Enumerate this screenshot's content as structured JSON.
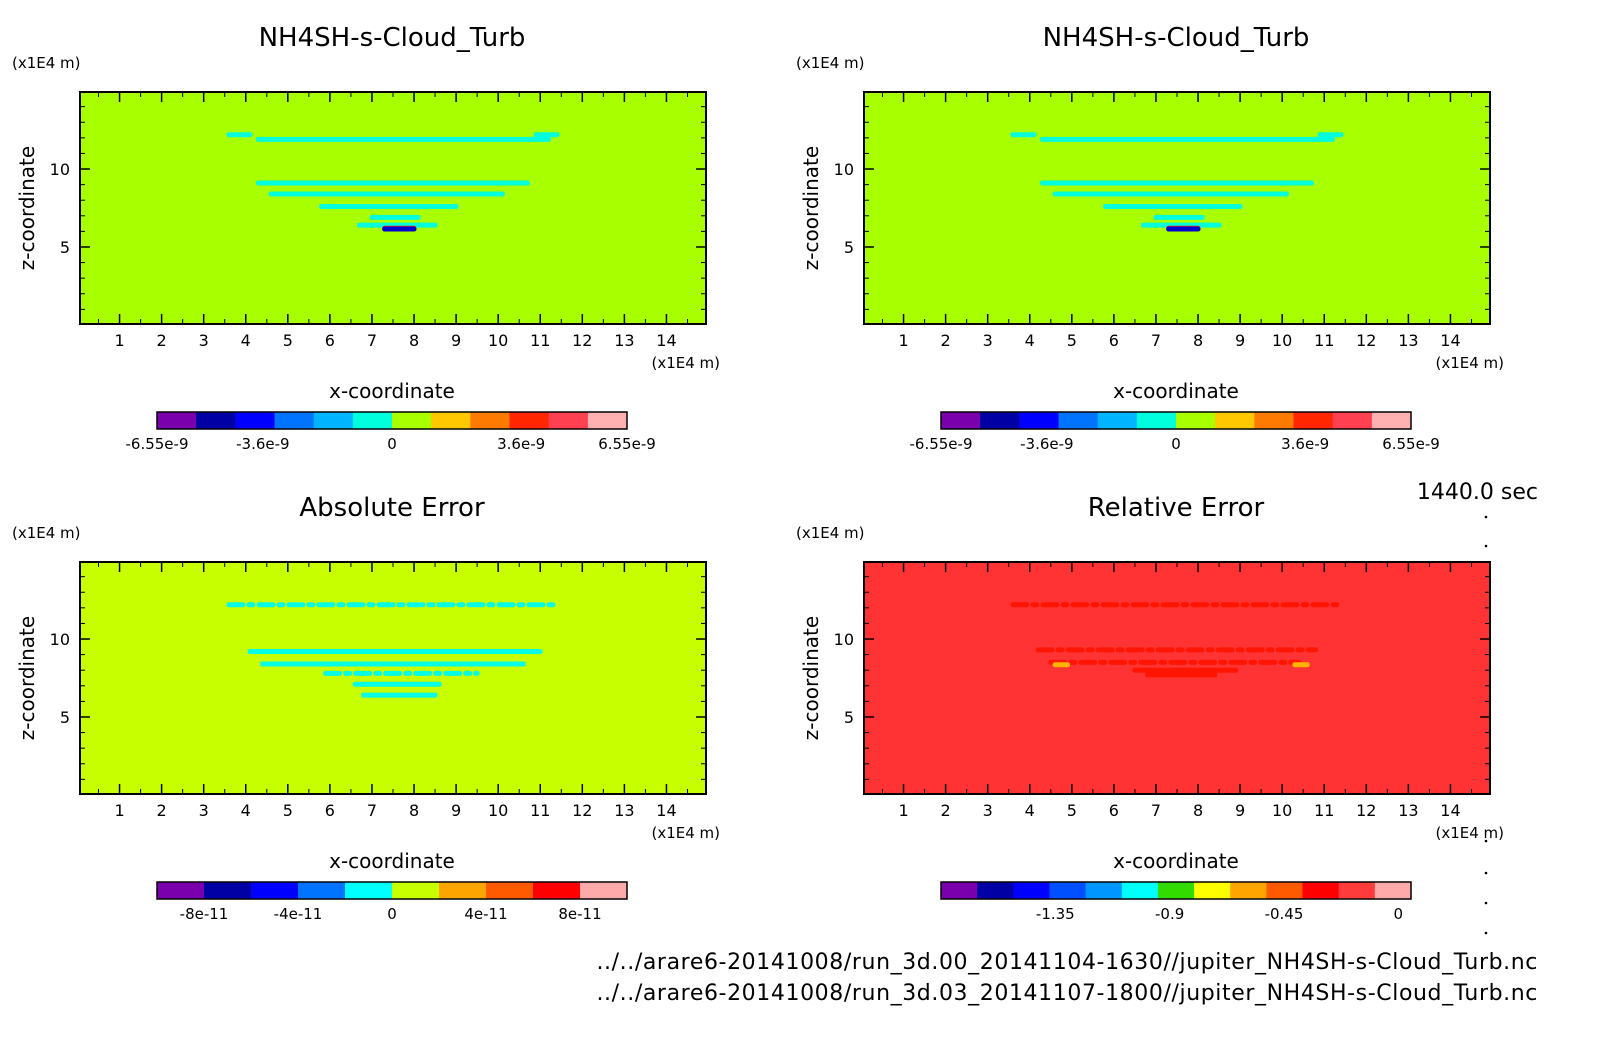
{
  "time_label": "1440.0 sec",
  "footer": {
    "line1": "../../arare6-20141008/run_3d.00_20141104-1630//jupiter_NH4SH-s-Cloud_Turb.nc",
    "line2": "../../arare6-20141008/run_3d.03_20141107-1800//jupiter_NH4SH-s-Cloud_Turb.nc"
  },
  "chart_data": [
    {
      "type": "heatmap",
      "title": "NH4SH-s-Cloud_Turb",
      "xlabel": "x-coordinate",
      "ylabel": "z-coordinate",
      "x_unit": "(x1E4 m)",
      "y_unit": "(x1E4 m)",
      "xlim": [
        0.06,
        14.94
      ],
      "ylim": [
        0.06,
        14.94
      ],
      "xticks": [
        1,
        2,
        3,
        4,
        5,
        6,
        7,
        8,
        9,
        10,
        11,
        12,
        13,
        14
      ],
      "yticks": [
        5,
        10
      ],
      "background_color": "#a8ff00",
      "features": [
        {
          "x": [
            3.6,
            4.1
          ],
          "z": [
            12.2,
            12.2
          ],
          "color": "#00ffdd"
        },
        {
          "x": [
            4.3,
            11.2
          ],
          "z": [
            11.9,
            11.9
          ],
          "color": "#00ffdd"
        },
        {
          "x": [
            10.9,
            11.4
          ],
          "z": [
            12.2,
            12.2
          ],
          "color": "#00ffdd"
        },
        {
          "x": [
            4.3,
            10.7
          ],
          "z": [
            9.1,
            9.1
          ],
          "color": "#00ffdd"
        },
        {
          "x": [
            4.6,
            10.1
          ],
          "z": [
            8.4,
            8.4
          ],
          "color": "#00ffdd"
        },
        {
          "x": [
            5.8,
            9.0
          ],
          "z": [
            7.6,
            7.6
          ],
          "color": "#00ffdd"
        },
        {
          "x": [
            7.0,
            8.1
          ],
          "z": [
            6.9,
            6.9
          ],
          "color": "#00ffdd"
        },
        {
          "x": [
            6.7,
            8.5
          ],
          "z": [
            6.4,
            6.4
          ],
          "color": "#00ffdd"
        },
        {
          "x": [
            7.3,
            8.0
          ],
          "z": [
            6.2,
            6.2
          ],
          "color": "#ff2200"
        },
        {
          "x": [
            7.3,
            8.0
          ],
          "z": [
            6.15,
            6.15
          ],
          "color": "#0000cc"
        }
      ],
      "colorbar": {
        "colors": [
          "#7a00ad",
          "#0000a5",
          "#0000ff",
          "#0073ff",
          "#00b4ff",
          "#00ffdd",
          "#a8ff00",
          "#ffc800",
          "#ff7a00",
          "#ff2600",
          "#ff4050",
          "#ffb0b0"
        ],
        "tick_values": [
          -6.55e-09,
          -3.6e-09,
          0,
          3.6e-09,
          6.55e-09
        ],
        "tick_labels": [
          "-6.55e-9",
          "-3.6e-9",
          "0",
          "3.6e-9",
          "6.55e-9"
        ],
        "range": [
          -6.55e-09,
          6.55e-09
        ]
      }
    },
    {
      "type": "heatmap",
      "title": "NH4SH-s-Cloud_Turb",
      "xlabel": "x-coordinate",
      "ylabel": "z-coordinate",
      "x_unit": "(x1E4 m)",
      "y_unit": "(x1E4 m)",
      "xlim": [
        0.06,
        14.94
      ],
      "ylim": [
        0.06,
        14.94
      ],
      "xticks": [
        1,
        2,
        3,
        4,
        5,
        6,
        7,
        8,
        9,
        10,
        11,
        12,
        13,
        14
      ],
      "yticks": [
        5,
        10
      ],
      "background_color": "#a8ff00",
      "features": [
        {
          "x": [
            3.6,
            4.1
          ],
          "z": [
            12.2,
            12.2
          ],
          "color": "#00ffdd"
        },
        {
          "x": [
            4.3,
            11.2
          ],
          "z": [
            11.9,
            11.9
          ],
          "color": "#00ffdd"
        },
        {
          "x": [
            10.9,
            11.4
          ],
          "z": [
            12.2,
            12.2
          ],
          "color": "#00ffdd"
        },
        {
          "x": [
            4.3,
            10.7
          ],
          "z": [
            9.1,
            9.1
          ],
          "color": "#00ffdd"
        },
        {
          "x": [
            4.6,
            10.1
          ],
          "z": [
            8.4,
            8.4
          ],
          "color": "#00ffdd"
        },
        {
          "x": [
            5.8,
            9.0
          ],
          "z": [
            7.6,
            7.6
          ],
          "color": "#00ffdd"
        },
        {
          "x": [
            7.0,
            8.1
          ],
          "z": [
            6.9,
            6.9
          ],
          "color": "#00ffdd"
        },
        {
          "x": [
            6.7,
            8.5
          ],
          "z": [
            6.4,
            6.4
          ],
          "color": "#00ffdd"
        },
        {
          "x": [
            7.3,
            8.0
          ],
          "z": [
            6.2,
            6.2
          ],
          "color": "#ff2200"
        },
        {
          "x": [
            7.3,
            8.0
          ],
          "z": [
            6.15,
            6.15
          ],
          "color": "#0000cc"
        }
      ],
      "colorbar": {
        "colors": [
          "#7a00ad",
          "#0000a5",
          "#0000ff",
          "#0073ff",
          "#00b4ff",
          "#00ffdd",
          "#a8ff00",
          "#ffc800",
          "#ff7a00",
          "#ff2600",
          "#ff4050",
          "#ffb0b0"
        ],
        "tick_values": [
          -6.55e-09,
          -3.6e-09,
          0,
          3.6e-09,
          6.55e-09
        ],
        "tick_labels": [
          "-6.55e-9",
          "-3.6e-9",
          "0",
          "3.6e-9",
          "6.55e-9"
        ],
        "range": [
          -6.55e-09,
          6.55e-09
        ]
      }
    },
    {
      "type": "heatmap",
      "title": "Absolute Error",
      "xlabel": "x-coordinate",
      "ylabel": "z-coordinate",
      "x_unit": "(x1E4 m)",
      "y_unit": "(x1E4 m)",
      "xlim": [
        0.06,
        14.94
      ],
      "ylim": [
        0.06,
        14.94
      ],
      "xticks": [
        1,
        2,
        3,
        4,
        5,
        6,
        7,
        8,
        9,
        10,
        11,
        12,
        13,
        14
      ],
      "yticks": [
        5,
        10
      ],
      "background_color": "#c8ff00",
      "features": [
        {
          "x": [
            3.6,
            11.4
          ],
          "z": [
            12.2,
            12.2
          ],
          "color": "#00ffe6",
          "style": "dashed"
        },
        {
          "x": [
            4.1,
            11.0
          ],
          "z": [
            9.2,
            9.2
          ],
          "color": "#00ffe6"
        },
        {
          "x": [
            4.4,
            10.6
          ],
          "z": [
            8.4,
            8.4
          ],
          "color": "#00ffe6"
        },
        {
          "x": [
            5.9,
            9.5
          ],
          "z": [
            7.8,
            7.8
          ],
          "color": "#00ffe6",
          "style": "dashed"
        },
        {
          "x": [
            6.6,
            8.6
          ],
          "z": [
            7.1,
            7.1
          ],
          "color": "#00ffe6"
        },
        {
          "x": [
            6.8,
            8.5
          ],
          "z": [
            6.4,
            6.4
          ],
          "color": "#00ffe6"
        }
      ],
      "colorbar": {
        "colors": [
          "#7a00ad",
          "#0000a5",
          "#0000ff",
          "#0073ff",
          "#00ffff",
          "#c8ff00",
          "#ffa500",
          "#ff5a00",
          "#ff0000",
          "#ffaaaa"
        ],
        "tick_values": [
          -8e-11,
          -4e-11,
          0,
          4e-11,
          8e-11
        ],
        "tick_labels": [
          "-8e-11",
          "-4e-11",
          "0",
          "4e-11",
          "8e-11"
        ],
        "range": [
          -1e-10,
          1e-10
        ]
      }
    },
    {
      "type": "heatmap",
      "title": "Relative Error",
      "xlabel": "x-coordinate",
      "ylabel": "z-coordinate",
      "x_unit": "(x1E4 m)",
      "y_unit": "(x1E4 m)",
      "xlim": [
        0.06,
        14.94
      ],
      "ylim": [
        0.06,
        14.94
      ],
      "xticks": [
        1,
        2,
        3,
        4,
        5,
        6,
        7,
        8,
        9,
        10,
        11,
        12,
        13,
        14
      ],
      "yticks": [
        5,
        10
      ],
      "background_color": "#ff3333",
      "features": [
        {
          "x": [
            3.6,
            11.4
          ],
          "z": [
            12.2,
            12.2
          ],
          "color": "#ff1500",
          "style": "dashed"
        },
        {
          "x": [
            4.2,
            10.8
          ],
          "z": [
            9.3,
            9.3
          ],
          "color": "#ff1500",
          "style": "dashed"
        },
        {
          "x": [
            4.5,
            10.4
          ],
          "z": [
            8.5,
            8.5
          ],
          "color": "#ff1500",
          "style": "dashed"
        },
        {
          "x": [
            6.5,
            8.9
          ],
          "z": [
            8.0,
            8.0
          ],
          "color": "#ff1500"
        },
        {
          "x": [
            6.8,
            8.4
          ],
          "z": [
            7.7,
            7.7
          ],
          "color": "#ff1500"
        },
        {
          "x": [
            4.6,
            4.9
          ],
          "z": [
            8.35,
            8.35
          ],
          "color": "#ffb400"
        },
        {
          "x": [
            10.3,
            10.6
          ],
          "z": [
            8.35,
            8.35
          ],
          "color": "#ffb400"
        }
      ],
      "colorbar": {
        "colors": [
          "#7a00ad",
          "#0000a5",
          "#0000ff",
          "#0050ff",
          "#0096ff",
          "#00ffff",
          "#32dc00",
          "#ffff00",
          "#ffa500",
          "#ff5a00",
          "#ff0000",
          "#ff3c3c",
          "#ffaaaa"
        ],
        "tick_values": [
          -1.35,
          -0.9,
          -0.45,
          0
        ],
        "tick_labels": [
          "-1.35",
          "-0.9",
          "-0.45",
          "0"
        ],
        "range": [
          -1.8,
          0.05
        ]
      }
    }
  ]
}
